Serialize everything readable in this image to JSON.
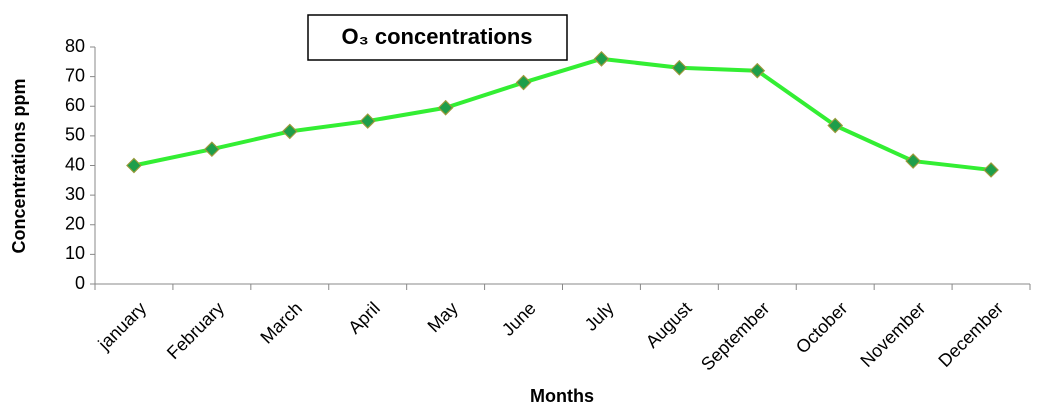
{
  "chart_data": {
    "type": "line",
    "title": "O₃ concentrations",
    "x_label": "Months",
    "y_label": "Concentrations ppm",
    "categories": [
      "january",
      "February",
      "March",
      "April",
      "May",
      "June",
      "July",
      "August",
      "September",
      "October",
      "November",
      "December"
    ],
    "series": [
      {
        "name": "O₃",
        "color": "#33ee33",
        "marker_color": "#1e9e4a",
        "values": [
          40,
          45.5,
          51.5,
          55,
          59.5,
          68,
          76,
          73,
          72,
          53.5,
          41.5,
          38.5
        ]
      }
    ],
    "ylim": [
      0,
      80
    ],
    "yticks": [
      0,
      10,
      20,
      30,
      40,
      50,
      60,
      70,
      80
    ]
  }
}
